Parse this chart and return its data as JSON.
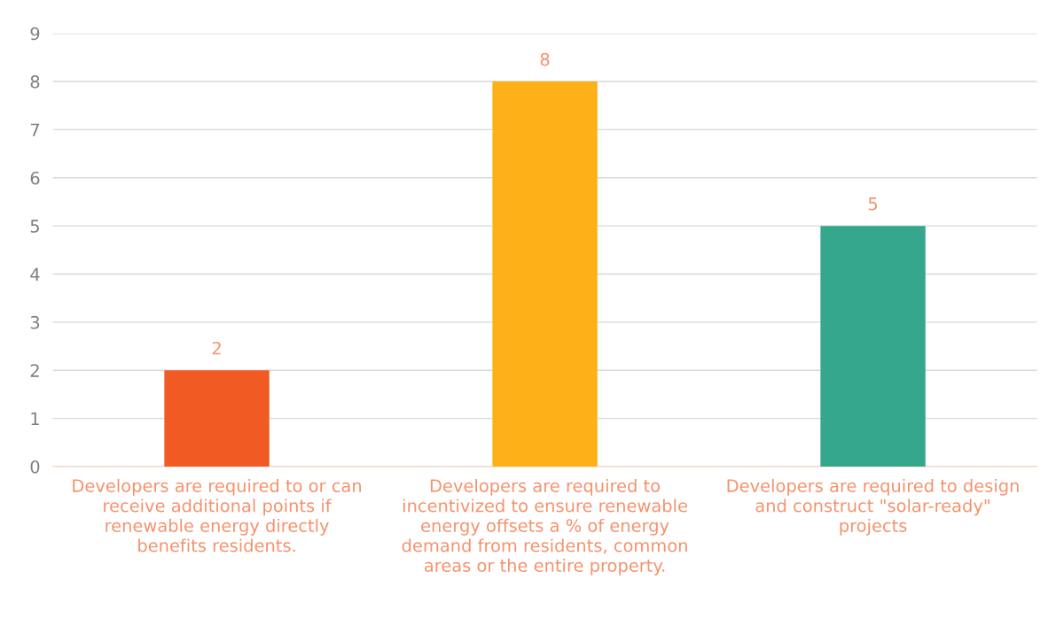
{
  "chart_data": {
    "type": "bar",
    "categories": [
      "Developers are required to or can\nreceive additional points if\nrenewable energy directly\nbenefits residents.",
      "Developers are required to\nincentivized to ensure renewable\nenergy offsets a % of energy\ndemand from residents, common\nareas or the entire property.",
      "Developers are required to design\nand construct \"solar-ready\"\nprojects"
    ],
    "values": [
      2,
      8,
      5
    ],
    "colors": [
      "#f15a22",
      "#fdb017",
      "#34a78c"
    ],
    "ylim": [
      0,
      9
    ],
    "yticks": [
      0,
      1,
      2,
      3,
      4,
      5,
      6,
      7,
      8,
      9
    ],
    "grid": "y",
    "data_labels": true,
    "legend": false
  }
}
